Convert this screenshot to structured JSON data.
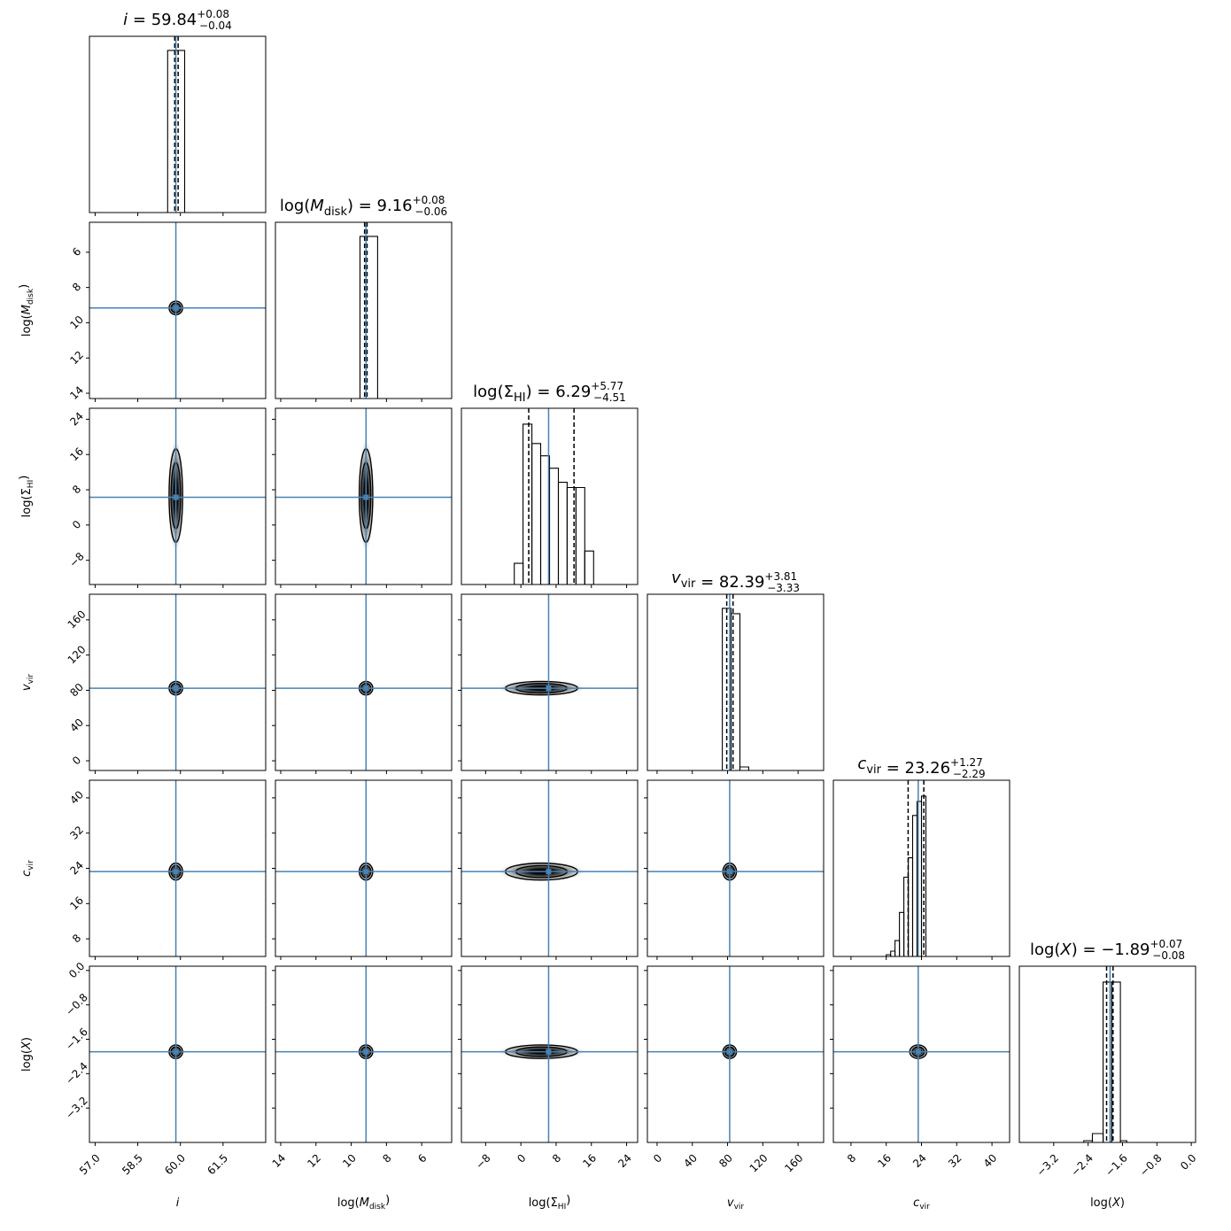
{
  "chart_data": {
    "type": "corner",
    "truth_color": "#4682b4",
    "params": [
      {
        "name": "i",
        "label": "i",
        "title": {
          "prefix": "i",
          "value": "59.84",
          "plus": "+0.08",
          "minus": "−0.04"
        },
        "range": [
          56.8,
          63.0
        ],
        "ticks": [
          57.0,
          58.5,
          60.0,
          61.5
        ],
        "tick_labels": [
          "57.0",
          "58.5",
          "60.0",
          "61.5"
        ],
        "left_ticks": [],
        "left_tick_labels": [],
        "truth": 59.84,
        "quantiles": [
          59.8,
          59.92
        ],
        "hist": [
          {
            "lo": 59.55,
            "hi": 60.15,
            "h": 0.92
          }
        ],
        "sigma_frac": 0.032
      },
      {
        "name": "log_mdisk",
        "label": "log(M_disk)",
        "title": {
          "prefix": "log(M",
          "value": "9.16",
          "plus": "+0.08",
          "minus": "−0.06"
        },
        "range": [
          14.3,
          4.3
        ],
        "ticks": [
          14,
          12,
          10,
          8,
          6
        ],
        "tick_labels": [
          "14",
          "12",
          "10",
          "8",
          "6"
        ],
        "left_ticks": [
          6,
          8,
          10,
          12,
          14
        ],
        "left_tick_labels": [
          "6",
          "8",
          "10",
          "12",
          "14"
        ],
        "truth": 9.16,
        "quantiles": [
          9.1,
          9.24
        ],
        "hist": [
          {
            "lo": 8.5,
            "hi": 9.5,
            "h": 0.92
          }
        ],
        "sigma_frac": 0.032
      },
      {
        "name": "log_sigma_hi",
        "label": "log(Σ_HI)",
        "title": {
          "prefix": "log(Σ",
          "value": "6.29",
          "plus": "+5.77",
          "minus": "−4.51"
        },
        "range": [
          -13.5,
          26.5
        ],
        "ticks": [
          -8,
          0,
          8,
          16,
          24
        ],
        "tick_labels": [
          "−8",
          "0",
          "8",
          "16",
          "24"
        ],
        "left_ticks": [
          -8,
          0,
          8,
          16,
          24
        ],
        "left_tick_labels": [
          "−8",
          "0",
          "8",
          "16",
          "24"
        ],
        "truth": 6.29,
        "quantiles": [
          1.78,
          12.06
        ],
        "hist": [
          {
            "lo": -1.5,
            "hi": 0.5,
            "h": 0.12
          },
          {
            "lo": 0.5,
            "hi": 2.5,
            "h": 0.91
          },
          {
            "lo": 2.5,
            "hi": 4.5,
            "h": 0.8
          },
          {
            "lo": 4.5,
            "hi": 6.5,
            "h": 0.73
          },
          {
            "lo": 6.5,
            "hi": 8.5,
            "h": 0.66
          },
          {
            "lo": 8.5,
            "hi": 10.5,
            "h": 0.58
          },
          {
            "lo": 10.5,
            "hi": 12.5,
            "h": 0.55
          },
          {
            "lo": 12.5,
            "hi": 14.5,
            "h": 0.55
          },
          {
            "lo": 14.5,
            "hi": 16.5,
            "h": 0.19
          }
        ],
        "sigma_frac": 0.07
      },
      {
        "name": "v_vir",
        "label": "v_vir",
        "title": {
          "prefix": "v",
          "value": "82.39",
          "plus": "+3.81",
          "minus": "−3.33"
        },
        "range": [
          -11,
          189
        ],
        "ticks": [
          0,
          40,
          80,
          120,
          160
        ],
        "tick_labels": [
          "0",
          "40",
          "80",
          "120",
          "160"
        ],
        "left_ticks": [
          0,
          40,
          80,
          120,
          160
        ],
        "left_tick_labels": [
          "0",
          "40",
          "80",
          "120",
          "160"
        ],
        "truth": 82.39,
        "quantiles": [
          79.06,
          86.2
        ],
        "hist": [
          {
            "lo": 74,
            "hi": 84,
            "h": 0.92
          },
          {
            "lo": 84,
            "hi": 94,
            "h": 0.89
          },
          {
            "lo": 94,
            "hi": 104,
            "h": 0.02
          }
        ],
        "sigma_frac": 0.032
      },
      {
        "name": "c_vir",
        "label": "c_vir",
        "title": {
          "prefix": "c",
          "value": "23.26",
          "plus": "+1.27",
          "minus": "−2.29"
        },
        "range": [
          4.0,
          44.0
        ],
        "ticks": [
          8,
          16,
          24,
          32,
          40
        ],
        "tick_labels": [
          "8",
          "16",
          "24",
          "32",
          "40"
        ],
        "left_ticks": [
          8,
          16,
          24,
          32,
          40
        ],
        "left_tick_labels": [
          "8",
          "16",
          "24",
          "32",
          "40"
        ],
        "truth": 23.26,
        "quantiles": [
          20.97,
          24.53
        ],
        "hist": [
          {
            "lo": 16.0,
            "hi": 17.0,
            "h": 0.01
          },
          {
            "lo": 17.0,
            "hi": 18.0,
            "h": 0.03
          },
          {
            "lo": 18.0,
            "hi": 19.0,
            "h": 0.09
          },
          {
            "lo": 19.0,
            "hi": 20.0,
            "h": 0.25
          },
          {
            "lo": 20.0,
            "hi": 21.0,
            "h": 0.45
          },
          {
            "lo": 21.0,
            "hi": 22.0,
            "h": 0.56
          },
          {
            "lo": 22.0,
            "hi": 23.0,
            "h": 0.8
          },
          {
            "lo": 23.0,
            "hi": 24.0,
            "h": 0.88
          },
          {
            "lo": 24.0,
            "hi": 25.0,
            "h": 0.91
          }
        ],
        "sigma_frac": 0.04
      },
      {
        "name": "log_x",
        "label": "log(X)",
        "title": {
          "prefix": "log(X)",
          "value": "−1.89",
          "plus": "+0.07",
          "minus": "−0.08"
        },
        "range": [
          -4.0,
          0.1
        ],
        "ticks": [
          -3.2,
          -2.4,
          -1.6,
          -0.8,
          0.0
        ],
        "tick_labels": [
          "−3.2",
          "−2.4",
          "−1.6",
          "−0.8",
          "0.0"
        ],
        "left_ticks": [
          -3.2,
          -2.4,
          -1.6,
          -0.8,
          0.0
        ],
        "left_tick_labels": [
          "−3.2",
          "−2.4",
          "−1.6",
          "−0.8",
          "0.0"
        ],
        "truth": -1.89,
        "quantiles": [
          -1.97,
          -1.82
        ],
        "hist": [
          {
            "lo": -2.5,
            "hi": -2.3,
            "h": 0.01
          },
          {
            "lo": -2.3,
            "hi": -2.05,
            "h": 0.05
          },
          {
            "lo": -2.05,
            "hi": -1.85,
            "h": 0.91
          },
          {
            "lo": -1.85,
            "hi": -1.65,
            "h": 0.91
          },
          {
            "lo": -1.65,
            "hi": -1.5,
            "h": 0.01
          }
        ],
        "sigma_frac": 0.032
      }
    ]
  }
}
